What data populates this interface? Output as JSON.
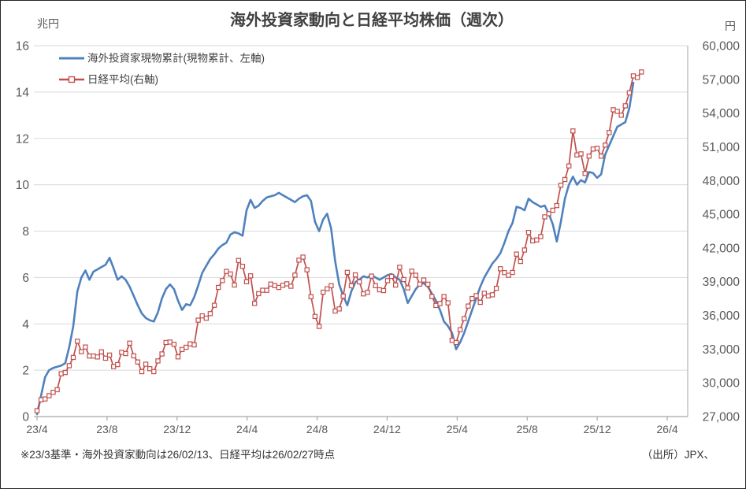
{
  "title": "海外投資家動向と日経平均株価（週次）",
  "left_axis": {
    "unit": "兆円",
    "ticks": [
      "0",
      "2",
      "4",
      "6",
      "8",
      "10",
      "12",
      "14",
      "16"
    ],
    "min": 0,
    "max": 16,
    "step": 2
  },
  "right_axis": {
    "unit": "円",
    "ticks": [
      "27,000",
      "30,000",
      "33,000",
      "36,000",
      "39,000",
      "42,000",
      "45,000",
      "48,000",
      "51,000",
      "54,000",
      "57,000",
      "60,000"
    ],
    "min": 27000,
    "max": 60000,
    "step": 3000
  },
  "x_axis": {
    "labels": [
      "23/4",
      "23/8",
      "23/12",
      "24/4",
      "24/8",
      "24/12",
      "25/4",
      "25/8",
      "25/12",
      "26/4"
    ]
  },
  "legend": {
    "series1_label": "海外投資家現物累計(現物累計、左軸)",
    "series2_label": "日経平均(右軸)"
  },
  "footnote": "※23/3基準・海外投資家動向は26/02/13、日経平均は26/02/27時点",
  "source": "（出所）JPX、",
  "colors": {
    "blue": "#4F81BD",
    "red": "#C0504D",
    "grid": "#D9D9D9",
    "axis": "#A6A6A6"
  },
  "chart_data": {
    "type": "line",
    "x_unit": "week",
    "start": "23/4",
    "end_blue": "26/02/13",
    "end_red": "26/02/27",
    "left_range": [
      0,
      16
    ],
    "right_range": [
      27000,
      60000
    ],
    "grid": true,
    "legend_position": "top-left-inside",
    "axis_total_weeks": 156.4,
    "series": [
      {
        "name": "海外投資家現物累計(現物累計、左軸)",
        "axis": "left",
        "marker": "none",
        "values": [
          0.1,
          0.9,
          1.7,
          2.0,
          2.1,
          2.15,
          2.2,
          2.3,
          3.0,
          3.9,
          5.4,
          6.0,
          6.3,
          5.9,
          6.25,
          6.35,
          6.45,
          6.55,
          6.85,
          6.4,
          5.9,
          6.05,
          5.9,
          5.6,
          5.2,
          4.8,
          4.45,
          4.25,
          4.15,
          4.1,
          4.5,
          5.1,
          5.5,
          5.7,
          5.5,
          5.0,
          4.6,
          4.85,
          4.8,
          5.15,
          5.65,
          6.2,
          6.5,
          6.8,
          7.0,
          7.25,
          7.4,
          7.5,
          7.85,
          7.95,
          7.9,
          7.8,
          8.9,
          9.35,
          9.0,
          9.1,
          9.3,
          9.45,
          9.5,
          9.55,
          9.65,
          9.55,
          9.45,
          9.35,
          9.25,
          9.4,
          9.5,
          9.55,
          9.3,
          8.4,
          8.0,
          8.5,
          8.75,
          8.1,
          6.7,
          5.7,
          5.2,
          4.8,
          5.4,
          5.8,
          5.9,
          6.05,
          6.0,
          6.1,
          6.0,
          5.9,
          6.0,
          6.1,
          6.15,
          6.0,
          5.9,
          5.5,
          4.9,
          5.2,
          5.5,
          5.7,
          5.75,
          5.6,
          5.3,
          5.0,
          4.6,
          4.1,
          3.9,
          3.6,
          2.9,
          3.2,
          3.6,
          4.1,
          4.6,
          5.1,
          5.6,
          6.0,
          6.3,
          6.6,
          6.8,
          7.05,
          7.5,
          8.0,
          8.35,
          9.05,
          9.0,
          8.9,
          9.4,
          9.25,
          9.15,
          9.05,
          9.1,
          8.75,
          8.3,
          7.55,
          8.4,
          9.4,
          10.0,
          10.35,
          10.0,
          10.2,
          10.1,
          10.55,
          10.5,
          10.3,
          10.45,
          11.3,
          11.7,
          12.1,
          12.5,
          12.6,
          12.7,
          13.3,
          14.4,
          null,
          null
        ]
      },
      {
        "name": "日経平均(右軸)",
        "axis": "right",
        "marker": "open-square",
        "values": [
          27518,
          28493,
          28564,
          28856,
          29158,
          29388,
          30808,
          30916,
          31524,
          32265,
          33706,
          32781,
          33189,
          32388,
          32391,
          32304,
          32759,
          32193,
          32473,
          31451,
          31624,
          32711,
          32607,
          33533,
          32402,
          31858,
          30995,
          31659,
          31259,
          30992,
          31950,
          32568,
          33585,
          33626,
          33432,
          32308,
          32971,
          33169,
          33464,
          33377,
          35577,
          35963,
          35751,
          36158,
          36897,
          38487,
          39099,
          39910,
          39688,
          38708,
          40888,
          40369,
          38992,
          39523,
          37068,
          37935,
          38236,
          38229,
          38787,
          38646,
          38487,
          38683,
          38814,
          38596,
          39583,
          40912,
          41190,
          40063,
          37667,
          35909,
          35025,
          38062,
          38364,
          38647,
          36391,
          36581,
          37723,
          39829,
          38635,
          39605,
          38981,
          37913,
          38053,
          39500,
          38642,
          38283,
          38208,
          39091,
          39470,
          38701,
          40281,
          39190,
          38451,
          39932,
          39572,
          38787,
          39149,
          38776,
          37676,
          36887,
          37053,
          37677,
          37120,
          33780,
          33586,
          34730,
          35706,
          36830,
          37503,
          37754,
          37160,
          37965,
          37742,
          37834,
          38403,
          40151,
          39811,
          39570,
          39819,
          41456,
          40800,
          41820,
          43378,
          42633,
          42718,
          43018,
          44768,
          45045,
          45354,
          45769,
          47582,
          48088,
          49299,
          52411,
          50276,
          50376,
          48626,
          50167,
          50800,
          50870,
          50170,
          51150,
          52270,
          54300,
          54160,
          53810,
          54650,
          55800,
          57310,
          57170,
          57660
        ]
      }
    ]
  }
}
